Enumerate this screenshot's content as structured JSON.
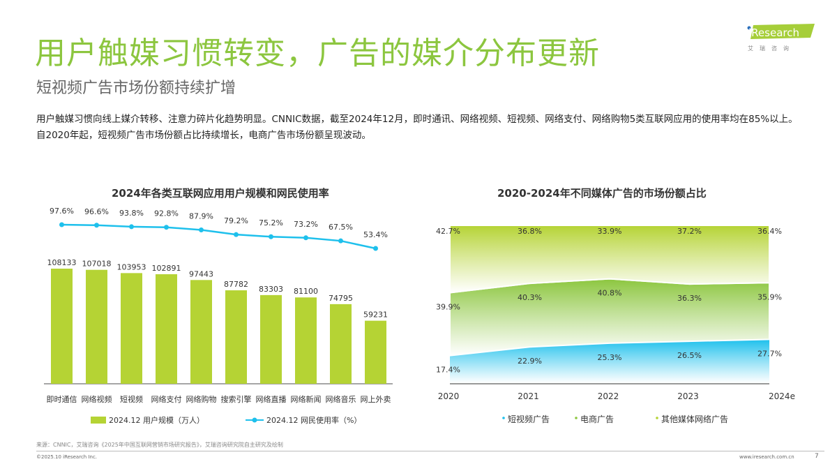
{
  "header": {
    "title": "用户触媒习惯转变，广告的媒介分布更新",
    "subtitle": "短视频广告市场份额持续扩增",
    "description": "用户触媒习惯向线上媒介转移、注意力碎片化趋势明显。CNNIC数据，截至2024年12月，即时通讯、网络视频、短视频、网络支付、网络购物5类互联网应用的使用率均在85%以上。自2020年起，短视频广告市场份额占比持续增长，电商广告市场份额呈现波动。"
  },
  "logo": {
    "text": "iResearch",
    "sub": "艾 瑞 咨 询",
    "color": "#a6ce39"
  },
  "chart_data": [
    {
      "type": "bar+line",
      "title": "2024年各类互联网应用用户规模和网民使用率",
      "categories": [
        "即时通信",
        "网络视频",
        "短视频",
        "网络支付",
        "网络购物",
        "搜索引擎",
        "网络直播",
        "网络新闻",
        "网络音乐",
        "网上外卖"
      ],
      "series": [
        {
          "name": "2024.12 用户规模（万人）",
          "type": "bar",
          "color": "#b5d334",
          "values": [
            108133,
            107018,
            103953,
            102891,
            97443,
            87782,
            83303,
            81100,
            74795,
            59231
          ]
        },
        {
          "name": "2024.12 网民使用率（%）",
          "type": "line",
          "color": "#1ec0ec",
          "values": [
            97.6,
            96.6,
            93.8,
            92.8,
            87.9,
            79.2,
            75.2,
            73.2,
            67.5,
            53.4
          ],
          "labels": [
            "97.6%",
            "96.6%",
            "93.8%",
            "92.8%",
            "87.9%",
            "79.2%",
            "75.2%",
            "73.2%",
            "67.5%",
            "53.4%"
          ]
        }
      ]
    },
    {
      "type": "area",
      "stacked_percent": true,
      "title": "2020-2024年不同媒体广告的市场份额占比",
      "categories": [
        "2020",
        "2021",
        "2022",
        "2023",
        "2024e"
      ],
      "ylim": [
        0,
        100
      ],
      "series": [
        {
          "name": "短视频广告",
          "color": "#1ec0ec",
          "values": [
            17.4,
            22.9,
            25.3,
            26.5,
            27.7
          ]
        },
        {
          "name": "电商广告",
          "color": "#8cc63f",
          "values": [
            39.9,
            40.3,
            40.8,
            36.3,
            35.9
          ]
        },
        {
          "name": "其他媒体网络广告",
          "color": "#b5d334",
          "values": [
            42.7,
            36.8,
            33.9,
            37.2,
            36.4
          ]
        }
      ]
    }
  ],
  "footer": {
    "source": "来源：CNNIC，艾瑞咨询《2025年中国互联网营销市场研究报告》，艾瑞咨询研究院自主研究及绘制",
    "copyright": "©2025.10 iResearch Inc.",
    "site": "www.iresearch.com.cn",
    "page": "7"
  }
}
